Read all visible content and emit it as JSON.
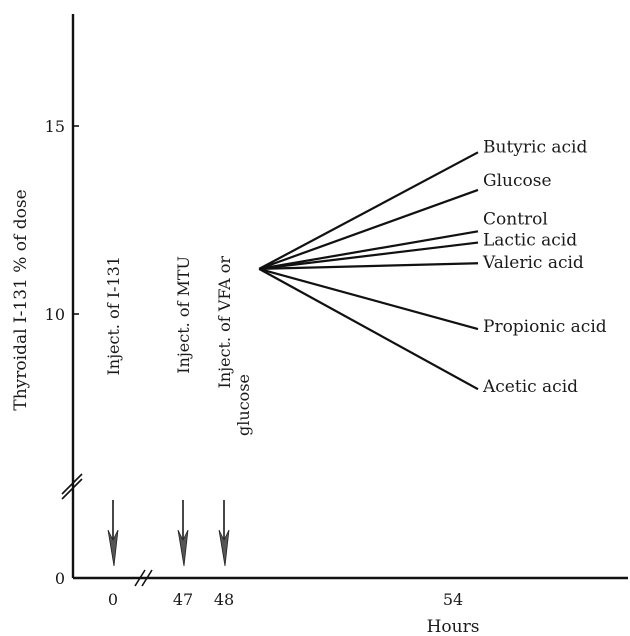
{
  "chart_data": {
    "type": "line",
    "title": "",
    "xlabel": "Hours",
    "ylabel": "Thyroidal I-131 % of dose",
    "x_ticks": [
      "0",
      "47",
      "48",
      "54"
    ],
    "y_ticks": [
      "0",
      "10",
      "15"
    ],
    "ylim": [
      0,
      17.5
    ],
    "grid": false,
    "axis_breaks": [
      "x",
      "y"
    ],
    "origin": {
      "x": 49,
      "y": 11.2
    },
    "series": [
      {
        "name": "Butyric acid",
        "values": [
          [
            49,
            11.2
          ],
          [
            54,
            14.3
          ]
        ]
      },
      {
        "name": "Glucose",
        "values": [
          [
            49,
            11.2
          ],
          [
            54,
            13.3
          ]
        ]
      },
      {
        "name": "Control",
        "values": [
          [
            49,
            11.2
          ],
          [
            54,
            12.2
          ]
        ]
      },
      {
        "name": "Lactic acid",
        "values": [
          [
            49,
            11.2
          ],
          [
            54,
            11.9
          ]
        ]
      },
      {
        "name": "Valeric acid",
        "values": [
          [
            49,
            11.2
          ],
          [
            54,
            11.35
          ]
        ]
      },
      {
        "name": "Propionic acid",
        "values": [
          [
            49,
            11.2
          ],
          [
            54,
            9.6
          ]
        ]
      },
      {
        "name": "Acetic acid",
        "values": [
          [
            49,
            11.2
          ],
          [
            54,
            8.0
          ]
        ]
      }
    ],
    "annotations": [
      {
        "text": "Inject. of I-131",
        "x": 0
      },
      {
        "text": "Inject. of MTU",
        "x": 47
      },
      {
        "text": "Inject. of VFA or",
        "text2": "glucose",
        "x": 48
      }
    ]
  }
}
